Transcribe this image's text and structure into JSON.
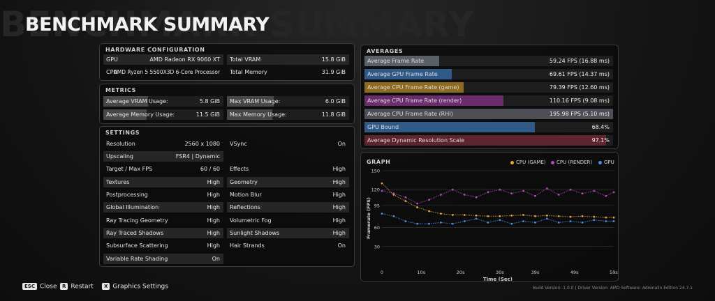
{
  "title": "BENCHMARK SUMMARY",
  "hardware": {
    "heading": "HARDWARE CONFIGURATION",
    "gpu_label": "GPU",
    "gpu_value": "AMD Radeon RX 9060 XT",
    "cpu_label": "CPU",
    "cpu_value": "AMD Ryzen 5 5500X3D 6-Core Processor",
    "vram_label": "Total VRAM",
    "vram_value": "15.8 GiB",
    "mem_label": "Total Memory",
    "mem_value": "31.9 GiB"
  },
  "metrics": {
    "heading": "METRICS",
    "avg_vram_label": "Average VRAM Usage:",
    "avg_vram_value": "5.8 GiB",
    "avg_vram_fraction": 0.37,
    "max_vram_label": "Max VRAM Usage:",
    "max_vram_value": "6.0 GiB",
    "max_vram_fraction": 0.38,
    "avg_mem_label": "Average Memory Usage:",
    "avg_mem_value": "11.5 GiB",
    "avg_mem_fraction": 0.36,
    "max_mem_label": "Max Memory Usage:",
    "max_mem_value": "11.8 GiB",
    "max_mem_fraction": 0.37
  },
  "settings": {
    "heading": "SETTINGS",
    "left": [
      {
        "label": "Resolution",
        "value": "2560 x 1080"
      },
      {
        "label": "Upscaling",
        "value": "FSR4 | Dynamic"
      },
      {
        "label": "Target / Max FPS",
        "value": "60 / 60"
      },
      {
        "label": "Textures",
        "value": "High"
      },
      {
        "label": "Postprocessing",
        "value": "High"
      },
      {
        "label": "Global Illumination",
        "value": "High"
      },
      {
        "label": "Ray Tracing Geometry",
        "value": "High"
      },
      {
        "label": "Ray Traced Shadows",
        "value": "High"
      },
      {
        "label": "Subsurface Scattering",
        "value": "High"
      },
      {
        "label": "Variable Rate Shading",
        "value": "On"
      }
    ],
    "right": [
      {
        "label": "VSync",
        "value": "On"
      },
      {
        "label": "Effects",
        "value": "High"
      },
      {
        "label": "Geometry",
        "value": "High"
      },
      {
        "label": "Motion Blur",
        "value": "High"
      },
      {
        "label": "Reflections",
        "value": "High"
      },
      {
        "label": "Volumetric Fog",
        "value": "High"
      },
      {
        "label": "Sunlight Shadows",
        "value": "High"
      },
      {
        "label": "Hair Strands",
        "value": "On"
      }
    ]
  },
  "averages": {
    "heading": "AVERAGES",
    "rows": [
      {
        "label": "Average Frame Rate",
        "value": "59.24 FPS (16.88 ms)",
        "fraction": 0.3,
        "color": "#5b5f66"
      },
      {
        "label": "Average GPU Frame Rate",
        "value": "69.61 FPS (14.37 ms)",
        "fraction": 0.35,
        "color": "#2f5a88"
      },
      {
        "label": "Average CPU Frame Rate (game)",
        "value": "79.39 FPS (12.60 ms)",
        "fraction": 0.4,
        "color": "#8c6a1f"
      },
      {
        "label": "Average CPU Frame Rate (render)",
        "value": "110.16 FPS (9.08 ms)",
        "fraction": 0.56,
        "color": "#6b2d6e"
      },
      {
        "label": "Average CPU Frame Rate (RHI)",
        "value": "195.98 FPS (5.10 ms)",
        "fraction": 1.0,
        "color": "#4e4e56"
      },
      {
        "label": "GPU Bound",
        "value": "68.4%",
        "fraction": 0.684,
        "color": "#2f5a88"
      },
      {
        "label": "Average Dynamic Resolution Scale",
        "value": "97.1%",
        "fraction": 0.971,
        "color": "#5e2530"
      }
    ]
  },
  "graph": {
    "heading": "GRAPH",
    "legend": [
      {
        "label": "CPU (GAME)",
        "color": "#e0a63a"
      },
      {
        "label": "CPU (RENDER)",
        "color": "#b04ab8"
      },
      {
        "label": "GPU",
        "color": "#4a90e0"
      }
    ],
    "ylabel": "Framerate (FPS)",
    "xlabel": "Time (Sec)",
    "y_ticks": [
      "150",
      "120",
      "95",
      "60",
      "30"
    ],
    "x_ticks": [
      "0",
      "10s",
      "20s",
      "30s",
      "39s",
      "49s",
      "59s"
    ]
  },
  "chart_data": {
    "type": "scatter",
    "title": "GRAPH",
    "xlabel": "Time (Sec)",
    "ylabel": "Framerate (FPS)",
    "xlim": [
      0,
      59
    ],
    "ylim": [
      0,
      150
    ],
    "series": [
      {
        "name": "CPU (GAME)",
        "x": [
          0,
          3,
          6,
          9,
          12,
          15,
          18,
          21,
          24,
          27,
          30,
          33,
          36,
          39,
          42,
          45,
          48,
          51,
          54,
          57,
          59
        ],
        "y": [
          130,
          112,
          102,
          92,
          86,
          82,
          80,
          80,
          79,
          78,
          78,
          79,
          80,
          78,
          79,
          78,
          77,
          78,
          77,
          76,
          76
        ]
      },
      {
        "name": "CPU (RENDER)",
        "x": [
          0,
          3,
          6,
          9,
          12,
          15,
          18,
          21,
          24,
          27,
          30,
          33,
          36,
          39,
          42,
          45,
          48,
          51,
          54,
          57,
          59
        ],
        "y": [
          118,
          114,
          108,
          98,
          104,
          112,
          120,
          112,
          108,
          116,
          120,
          114,
          118,
          110,
          122,
          112,
          120,
          114,
          118,
          110,
          116
        ]
      },
      {
        "name": "GPU",
        "x": [
          0,
          3,
          6,
          9,
          12,
          15,
          18,
          21,
          24,
          27,
          30,
          33,
          36,
          39,
          42,
          45,
          48,
          51,
          54,
          57,
          59
        ],
        "y": [
          82,
          78,
          70,
          66,
          66,
          68,
          66,
          70,
          74,
          68,
          72,
          66,
          70,
          68,
          74,
          68,
          70,
          68,
          72,
          70,
          70
        ]
      }
    ]
  },
  "footer": {
    "close_key": "ESC",
    "close_label": "Close",
    "restart_key": "R",
    "restart_label": "Restart",
    "settings_key": "X",
    "settings_label": "Graphics Settings",
    "build_info": "Build Version: 1.0.0 | Driver Version: AMD Software: Adrenalin Edition 24.7.1"
  }
}
